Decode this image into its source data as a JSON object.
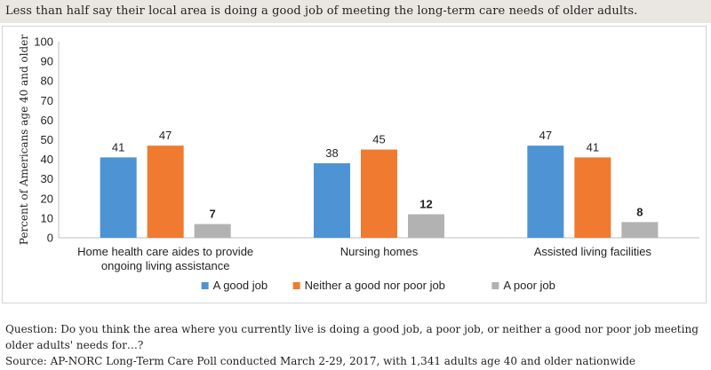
{
  "header": {
    "title": "Less than half say their local area is doing a good job of meeting the long-term care needs of older adults."
  },
  "chart_data": {
    "type": "bar",
    "ylabel": "Percent of Americans age 40 and older",
    "ylim": [
      0,
      100
    ],
    "yticks": [
      0,
      10,
      20,
      30,
      40,
      50,
      60,
      70,
      80,
      90,
      100
    ],
    "grid": false,
    "legend_position": "bottom",
    "categories": [
      [
        "Home health care aides to provide",
        "ongoing living assistance"
      ],
      [
        "Nursing homes"
      ],
      [
        "Assisted living facilities"
      ]
    ],
    "series": [
      {
        "name": "A good job",
        "color": "#4e93d4",
        "values": [
          41,
          38,
          47
        ]
      },
      {
        "name": "Neither a good nor poor job",
        "color": "#ef7a30",
        "values": [
          47,
          45,
          41
        ]
      },
      {
        "name": "A poor job",
        "color": "#b3b2b2",
        "values": [
          7,
          12,
          8
        ]
      }
    ]
  },
  "footer": {
    "question": "Question: Do you think the area where you currently live is doing a good job, a poor job, or neither a good nor poor job meeting older adults' needs for…?",
    "source": "Source: AP-NORC Long-Term Care Poll conducted March 2-29, 2017, with 1,341 adults age 40 and older nationwide"
  }
}
